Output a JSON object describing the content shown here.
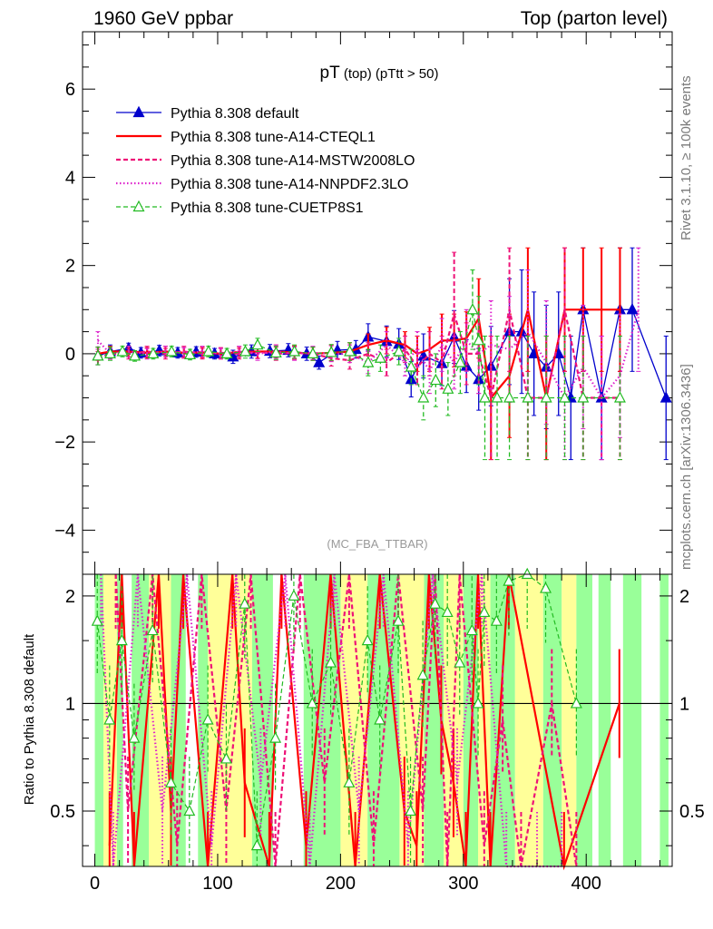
{
  "header": {
    "left": "1960 GeV ppbar",
    "right": "Top (parton level)"
  },
  "plot_title": {
    "main": "pT",
    "sub1": " (top)",
    "sub2": " (pTtt > 50)"
  },
  "side_text": {
    "rivet": "Rivet 3.1.10, ≥ 100k events",
    "mcplots": "mcplots.cern.ch [arXiv:1306.3436]"
  },
  "analysis_id": "(MC_FBA_TTBAR)",
  "ratio_ylabel": "Ratio to Pythia 8.308 default",
  "colors": {
    "default": "#0000cc",
    "cteql1": "#ff0000",
    "mstw": "#ee1177",
    "nnpdf": "#dd22cc",
    "cuetp8s1": "#22bb22",
    "band_yellow": "#ffff99",
    "band_green": "#99ff99"
  },
  "chart_data": [
    {
      "type": "line",
      "panel": "main",
      "xlim": [
        -10,
        470
      ],
      "ylim": [
        -5,
        7.3
      ],
      "yticks": [
        "−4",
        "−2",
        "0",
        "2",
        "4",
        "6"
      ],
      "legend_placement": "top-left",
      "series": [
        {
          "name": "Pythia 8.308 default",
          "style": "solid-triangle-marker",
          "x": [
            2.5,
            12.5,
            27.5,
            37.5,
            52.5,
            67.5,
            82.5,
            97.5,
            112.5,
            127.5,
            142.5,
            157.5,
            172.5,
            182.5,
            197.5,
            212.5,
            222.5,
            237.5,
            247.5,
            257.5,
            267.5,
            282.5,
            292.5,
            302.5,
            312.5,
            322.5,
            337.5,
            347.5,
            357.5,
            367.5,
            377.5,
            387.5,
            397.5,
            412.5,
            427.5,
            437.5,
            465
          ],
          "y": [
            -0.05,
            0.05,
            0.12,
            0.02,
            0.07,
            0.02,
            0.04,
            0.0,
            -0.07,
            0.05,
            0.06,
            0.08,
            0.0,
            -0.2,
            0.08,
            0.1,
            0.38,
            0.28,
            0.22,
            -0.58,
            -0.05,
            -0.22,
            0.38,
            -0.28,
            -0.58,
            -0.28,
            0.5,
            0.5,
            0.0,
            -0.3,
            0.0,
            -1.0,
            1.0,
            -1.0,
            1.0,
            1.0,
            -1.0
          ],
          "err": [
            0.2,
            0.15,
            0.12,
            0.12,
            0.12,
            0.12,
            0.12,
            0.12,
            0.15,
            0.15,
            0.15,
            0.15,
            0.15,
            0.15,
            0.2,
            0.2,
            0.3,
            0.35,
            0.35,
            0.4,
            0.5,
            0.5,
            0.6,
            0.6,
            0.7,
            0.9,
            1.2,
            1.4,
            1.4,
            1.4,
            1.4,
            1.4,
            1.4,
            1.4,
            1.4,
            1.4,
            1.4
          ]
        },
        {
          "name": "Pythia 8.308 tune-A14-CTEQL1",
          "style": "solid-step",
          "x": [
            2.5,
            12.5,
            27.5,
            42.5,
            57.5,
            72.5,
            87.5,
            102.5,
            117.5,
            132.5,
            147.5,
            162.5,
            177.5,
            192.5,
            207.5,
            222.5,
            237.5,
            252.5,
            262.5,
            272.5,
            282.5,
            292.5,
            302.5,
            312.5,
            322.5,
            337.5,
            352.5,
            367.5,
            382.5,
            397.5,
            412.5,
            427.5
          ],
          "y": [
            0.0,
            0.05,
            0.05,
            0.02,
            0.05,
            0.02,
            0.03,
            0.0,
            0.04,
            0.05,
            0.05,
            0.03,
            0.0,
            0.02,
            0.05,
            0.2,
            0.3,
            0.2,
            0.0,
            0.1,
            0.3,
            0.3,
            0.35,
            0.8,
            -1.0,
            -0.5,
            1.0,
            -1.0,
            1.0,
            1.0,
            1.0,
            1.0
          ],
          "err": [
            0.15,
            0.12,
            0.12,
            0.12,
            0.12,
            0.12,
            0.12,
            0.12,
            0.12,
            0.15,
            0.15,
            0.15,
            0.15,
            0.18,
            0.2,
            0.25,
            0.3,
            0.3,
            0.4,
            0.5,
            0.6,
            0.6,
            0.6,
            0.9,
            1.4,
            1.4,
            1.4,
            1.4,
            1.4,
            1.4,
            1.4,
            1.4
          ]
        },
        {
          "name": "Pythia 8.308 tune-A14-MSTW2008LO",
          "style": "dashed",
          "x": [
            2.5,
            12.5,
            27.5,
            42.5,
            57.5,
            72.5,
            87.5,
            102.5,
            117.5,
            132.5,
            147.5,
            162.5,
            177.5,
            192.5,
            207.5,
            222.5,
            237.5,
            252.5,
            262.5,
            272.5,
            282.5,
            292.5,
            302.5,
            312.5,
            322.5,
            337.5,
            352.5,
            367.5,
            382.5,
            397.5,
            412.5,
            427.5
          ],
          "y": [
            -0.1,
            0.0,
            0.0,
            0.05,
            0.0,
            0.05,
            0.0,
            0.02,
            0.0,
            0.04,
            0.0,
            0.02,
            0.0,
            -0.1,
            -0.15,
            0.0,
            -0.2,
            0.1,
            -0.3,
            0.0,
            -0.2,
            0.9,
            0.0,
            0.0,
            -1.0,
            1.0,
            -1.0,
            -1.0,
            1.0,
            -1.0,
            -1.0,
            -1.0
          ],
          "err": [
            0.15,
            0.12,
            0.12,
            0.12,
            0.12,
            0.12,
            0.12,
            0.12,
            0.12,
            0.15,
            0.15,
            0.15,
            0.15,
            0.18,
            0.2,
            0.25,
            0.3,
            0.3,
            0.4,
            0.5,
            0.6,
            1.4,
            0.7,
            0.9,
            1.4,
            1.4,
            1.4,
            1.4,
            1.4,
            1.4,
            1.4,
            1.4
          ]
        },
        {
          "name": "Pythia 8.308 tune-A14-NNPDF2.3LO",
          "style": "dotted",
          "x": [
            2.5,
            12.5,
            27.5,
            42.5,
            57.5,
            72.5,
            87.5,
            102.5,
            117.5,
            132.5,
            147.5,
            162.5,
            177.5,
            192.5,
            207.5,
            222.5,
            237.5,
            252.5,
            262.5,
            272.5,
            282.5,
            292.5,
            302.5,
            312.5,
            322.5,
            337.5,
            352.5,
            367.5,
            382.5,
            397.5,
            412.5,
            427.5,
            442.5
          ],
          "y": [
            0.3,
            0.0,
            0.05,
            0.0,
            0.05,
            0.02,
            0.05,
            0.0,
            0.05,
            0.0,
            0.05,
            0.0,
            0.02,
            0.0,
            0.0,
            -0.2,
            0.2,
            -0.2,
            0.1,
            -0.4,
            0.2,
            -0.2,
            0.3,
            0.0,
            0.2,
            0.1,
            0.5,
            -0.2,
            -1.0,
            -0.3,
            -1.0,
            -0.5,
            1.0
          ],
          "err": [
            0.2,
            0.12,
            0.12,
            0.12,
            0.12,
            0.12,
            0.12,
            0.12,
            0.12,
            0.15,
            0.15,
            0.15,
            0.15,
            0.18,
            0.2,
            0.25,
            0.3,
            0.3,
            0.4,
            0.5,
            0.6,
            0.6,
            0.7,
            0.9,
            1.0,
            1.2,
            1.4,
            1.4,
            1.4,
            1.4,
            1.4,
            1.4,
            1.4
          ]
        },
        {
          "name": "Pythia 8.308 tune-CUETP8S1",
          "style": "dashed-open-triangle",
          "x": [
            2.5,
            12.5,
            22.5,
            32.5,
            47.5,
            62.5,
            77.5,
            92.5,
            107.5,
            122.5,
            132.5,
            147.5,
            162.5,
            177.5,
            192.5,
            207.5,
            222.5,
            232.5,
            247.5,
            257.5,
            267.5,
            277.5,
            287.5,
            297.5,
            307.5,
            312.5,
            317.5,
            327.5,
            337.5,
            352.5,
            367.5,
            382.5,
            397.5,
            427.5
          ],
          "y": [
            -0.05,
            0.0,
            0.05,
            -0.05,
            0.0,
            0.05,
            -0.02,
            0.05,
            0.0,
            0.05,
            0.2,
            0.02,
            0.05,
            0.0,
            0.03,
            0.05,
            -0.2,
            -0.1,
            0.05,
            -0.3,
            -1.0,
            -0.6,
            -0.8,
            -0.2,
            1.0,
            0.3,
            -1.0,
            -1.0,
            -1.0,
            -1.0,
            -1.0,
            -1.0,
            -1.0,
            -1.0
          ],
          "err": [
            0.2,
            0.15,
            0.12,
            0.12,
            0.12,
            0.12,
            0.12,
            0.12,
            0.12,
            0.15,
            0.15,
            0.15,
            0.15,
            0.15,
            0.18,
            0.2,
            0.3,
            0.3,
            0.3,
            0.4,
            0.5,
            0.6,
            0.6,
            0.7,
            0.9,
            1.0,
            1.4,
            1.4,
            1.4,
            1.4,
            1.4,
            1.4,
            1.4,
            1.4
          ]
        }
      ]
    },
    {
      "type": "line",
      "panel": "ratio",
      "xlabel": "",
      "ylabel": "Ratio to Pythia 8.308 default",
      "xlim": [
        -10,
        470
      ],
      "ylim": [
        0.35,
        2.3
      ],
      "xticks": [
        "0",
        "100",
        "200",
        "300",
        "400"
      ],
      "yticks": [
        "0.5",
        "1",
        "2"
      ],
      "reference_line": 1,
      "green_band_x": [
        [
          0,
          7
        ],
        [
          18,
          23
        ],
        [
          30,
          44
        ],
        [
          62,
          74
        ],
        [
          84,
          92
        ],
        [
          128,
          145
        ],
        [
          170,
          200
        ],
        [
          222,
          248
        ],
        [
          268,
          284
        ],
        [
          300,
          312
        ],
        [
          322,
          342
        ],
        [
          365,
          380
        ],
        [
          392,
          405
        ],
        [
          410,
          420
        ],
        [
          430,
          445
        ],
        [
          460,
          467
        ]
      ],
      "yellow_band_x": [
        [
          7,
          18
        ],
        [
          44,
          62
        ],
        [
          92,
          128
        ],
        [
          200,
          222
        ],
        [
          248,
          268
        ],
        [
          284,
          300
        ],
        [
          312,
          322
        ],
        [
          342,
          365
        ],
        [
          380,
          392
        ]
      ],
      "series": [
        {
          "name": "Pythia 8.308 tune-A14-CTEQL1",
          "x": [
            12,
            22,
            32,
            52,
            62,
            72,
            92,
            112,
            122,
            142,
            152,
            172,
            192,
            212,
            232,
            252,
            262,
            272,
            282,
            292,
            302,
            312,
            322,
            337,
            382,
            427
          ],
          "y": [
            0.4,
            2.3,
            0.35,
            2.3,
            0.5,
            2.3,
            0.35,
            2.3,
            0.6,
            0.35,
            2.3,
            0.4,
            2.3,
            0.35,
            2.3,
            0.5,
            0.4,
            2.3,
            0.9,
            0.6,
            0.35,
            2.3,
            0.35,
            2.3,
            0.35,
            1.0
          ]
        },
        {
          "name": "Pythia 8.308 tune-A14-MSTW2008LO",
          "x": [
            17,
            27,
            47,
            67,
            87,
            107,
            127,
            147,
            167,
            187,
            207,
            227,
            247,
            267,
            277,
            287,
            297,
            317,
            332,
            347,
            372,
            392
          ],
          "y": [
            2.3,
            0.5,
            2.3,
            0.4,
            2.3,
            0.5,
            2.3,
            0.35,
            2.3,
            0.6,
            2.3,
            0.4,
            2.3,
            0.5,
            2.3,
            0.35,
            2.3,
            0.4,
            0.9,
            0.35,
            1.0,
            0.35
          ]
        },
        {
          "name": "Pythia 8.308 tune-A14-NNPDF2.3LO",
          "x": [
            5,
            15,
            35,
            55,
            75,
            95,
            115,
            135,
            155,
            175,
            195,
            215,
            235,
            255,
            275,
            295,
            315,
            335,
            360,
            380
          ],
          "y": [
            2.3,
            0.35,
            2.3,
            0.5,
            2.3,
            0.4,
            2.3,
            0.6,
            2.3,
            0.35,
            2.3,
            0.5,
            2.3,
            0.4,
            2.3,
            0.6,
            2.3,
            0.35,
            0.35,
            0.35
          ]
        },
        {
          "name": "Pythia 8.308 tune-CUETP8S1",
          "x": [
            2,
            12,
            22,
            32,
            47,
            62,
            77,
            92,
            107,
            122,
            132,
            147,
            162,
            177,
            192,
            207,
            222,
            232,
            247,
            257,
            267,
            277,
            287,
            297,
            307,
            312,
            317,
            327,
            337,
            352,
            367,
            392
          ],
          "y": [
            1.7,
            0.9,
            1.5,
            0.8,
            1.6,
            0.6,
            0.5,
            0.9,
            0.7,
            1.9,
            0.4,
            0.8,
            2.0,
            1.0,
            1.3,
            0.6,
            1.5,
            0.9,
            1.7,
            0.5,
            1.2,
            1.9,
            1.8,
            1.3,
            1.6,
            1.0,
            1.8,
            1.7,
            2.2,
            2.3,
            2.1,
            1.0
          ]
        }
      ]
    }
  ]
}
